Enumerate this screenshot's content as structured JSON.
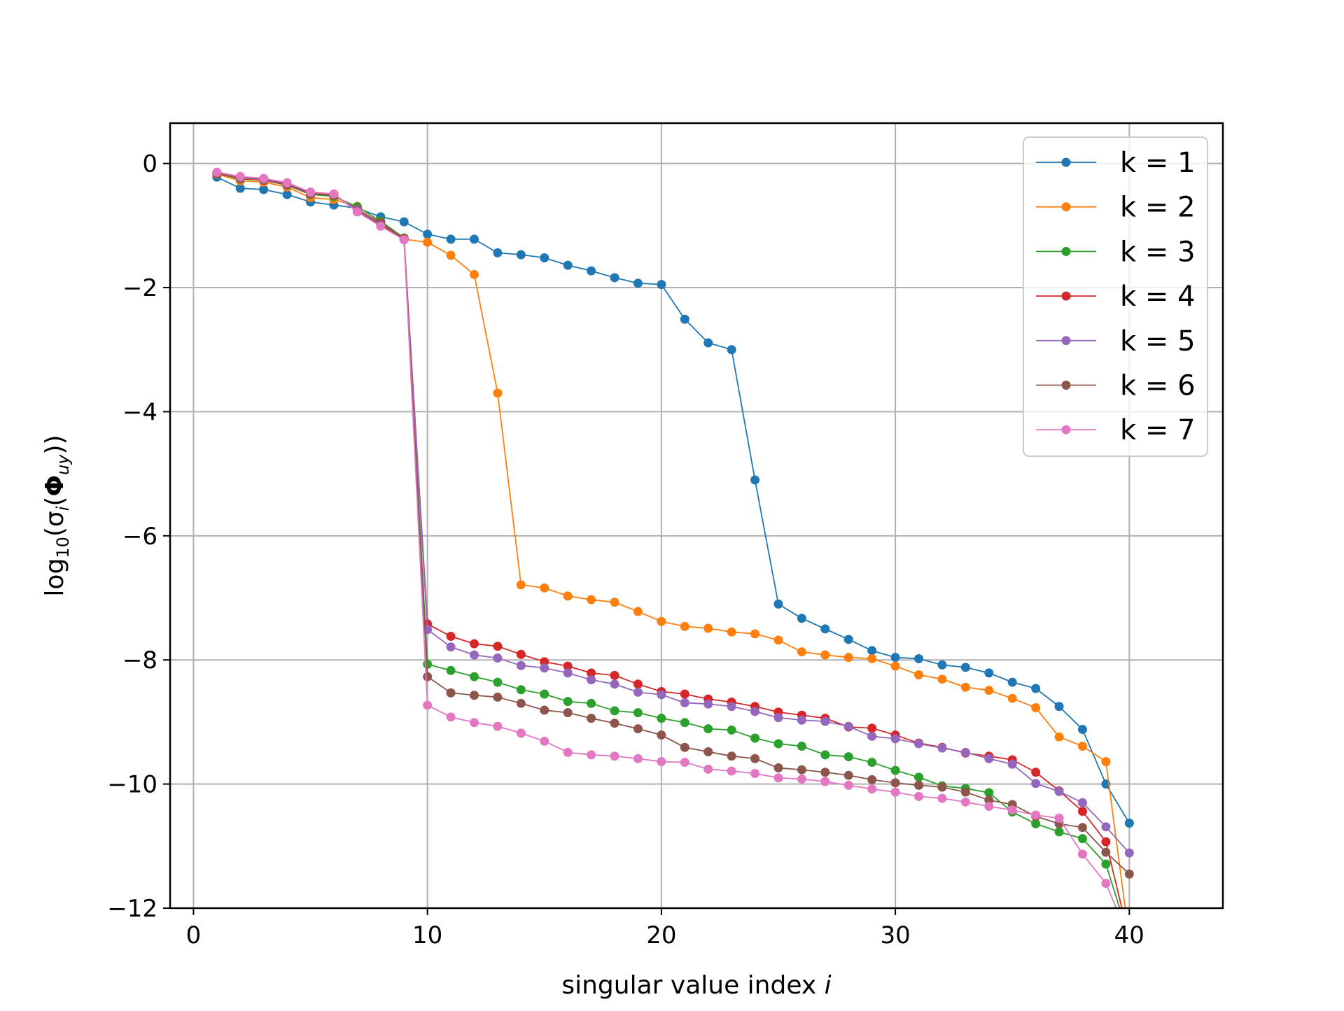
{
  "chart_data": {
    "type": "line",
    "xlabel": "singular value index i",
    "ylabel": "log10(σi(Φuy))",
    "xlim": [
      -1,
      44
    ],
    "ylim": [
      -12,
      0.65
    ],
    "xticks": [
      0,
      10,
      20,
      30,
      40
    ],
    "xtick_labels": [
      "0",
      "10",
      "20",
      "30",
      "40"
    ],
    "yticks": [
      0,
      -2,
      -4,
      -6,
      -8,
      -10,
      -12
    ],
    "ytick_labels": [
      "0",
      "−2",
      "−4",
      "−6",
      "−8",
      "−10",
      "−12"
    ],
    "grid": true,
    "legend_position": "top-right",
    "x": [
      1,
      2,
      3,
      4,
      5,
      6,
      7,
      8,
      9,
      10,
      11,
      12,
      13,
      14,
      15,
      16,
      17,
      18,
      19,
      20,
      21,
      22,
      23,
      24,
      25,
      26,
      27,
      28,
      29,
      30,
      31,
      32,
      33,
      34,
      35,
      36,
      37,
      38,
      39,
      40
    ],
    "series": [
      {
        "name": "k = 1",
        "color": "#1f77b4",
        "values": [
          -0.22,
          -0.4,
          -0.42,
          -0.5,
          -0.62,
          -0.67,
          -0.72,
          -0.86,
          -0.94,
          -1.14,
          -1.22,
          -1.22,
          -1.44,
          -1.47,
          -1.52,
          -1.64,
          -1.73,
          -1.84,
          -1.93,
          -1.95,
          -2.51,
          -2.89,
          -3.0,
          -5.1,
          -7.1,
          -7.33,
          -7.5,
          -7.67,
          -7.85,
          -7.96,
          -7.98,
          -8.08,
          -8.12,
          -8.21,
          -8.36,
          -8.46,
          -8.75,
          -9.12,
          -10.0,
          -10.63
        ]
      },
      {
        "name": "k = 2",
        "color": "#ff7f0e",
        "values": [
          -0.17,
          -0.28,
          -0.3,
          -0.38,
          -0.55,
          -0.58,
          -0.69,
          -0.94,
          -1.22,
          -1.27,
          -1.48,
          -1.79,
          -3.7,
          -6.79,
          -6.84,
          -6.97,
          -7.03,
          -7.07,
          -7.22,
          -7.38,
          -7.46,
          -7.49,
          -7.55,
          -7.58,
          -7.68,
          -7.87,
          -7.92,
          -7.96,
          -7.98,
          -8.1,
          -8.24,
          -8.31,
          -8.44,
          -8.49,
          -8.62,
          -8.77,
          -9.24,
          -9.39,
          -9.64,
          -12.5
        ]
      },
      {
        "name": "k = 3",
        "color": "#2ca02c",
        "values": [
          -0.16,
          -0.25,
          -0.27,
          -0.35,
          -0.5,
          -0.53,
          -0.7,
          -0.93,
          -1.2,
          -8.07,
          -8.17,
          -8.27,
          -8.36,
          -8.48,
          -8.55,
          -8.67,
          -8.7,
          -8.82,
          -8.85,
          -8.94,
          -9.01,
          -9.11,
          -9.13,
          -9.26,
          -9.35,
          -9.39,
          -9.53,
          -9.56,
          -9.65,
          -9.78,
          -9.89,
          -10.03,
          -10.07,
          -10.14,
          -10.45,
          -10.64,
          -10.77,
          -10.88,
          -11.29,
          -12.5
        ]
      },
      {
        "name": "k = 4",
        "color": "#d62728",
        "values": [
          -0.16,
          -0.24,
          -0.27,
          -0.34,
          -0.49,
          -0.51,
          -0.74,
          -0.96,
          -1.21,
          -7.42,
          -7.62,
          -7.74,
          -7.78,
          -7.91,
          -8.03,
          -8.1,
          -8.21,
          -8.25,
          -8.39,
          -8.51,
          -8.55,
          -8.63,
          -8.68,
          -8.75,
          -8.84,
          -8.89,
          -8.94,
          -9.08,
          -9.1,
          -9.21,
          -9.34,
          -9.41,
          -9.5,
          -9.55,
          -9.61,
          -9.81,
          -10.11,
          -10.44,
          -10.93,
          -12.5
        ]
      },
      {
        "name": "k = 5",
        "color": "#9467bd",
        "values": [
          -0.15,
          -0.23,
          -0.26,
          -0.33,
          -0.48,
          -0.5,
          -0.75,
          -0.98,
          -1.22,
          -7.51,
          -7.79,
          -7.92,
          -7.97,
          -8.09,
          -8.13,
          -8.21,
          -8.32,
          -8.39,
          -8.52,
          -8.56,
          -8.69,
          -8.71,
          -8.75,
          -8.83,
          -8.93,
          -8.97,
          -8.99,
          -9.07,
          -9.23,
          -9.27,
          -9.35,
          -9.42,
          -9.49,
          -9.59,
          -9.68,
          -9.99,
          -10.12,
          -10.3,
          -10.69,
          -11.11
        ]
      },
      {
        "name": "k = 6",
        "color": "#8c564b",
        "values": [
          -0.15,
          -0.22,
          -0.25,
          -0.32,
          -0.47,
          -0.5,
          -0.77,
          -0.99,
          -1.22,
          -8.27,
          -8.53,
          -8.57,
          -8.6,
          -8.7,
          -8.81,
          -8.85,
          -8.94,
          -9.02,
          -9.11,
          -9.21,
          -9.41,
          -9.48,
          -9.55,
          -9.59,
          -9.74,
          -9.77,
          -9.81,
          -9.86,
          -9.93,
          -9.98,
          -10.02,
          -10.05,
          -10.13,
          -10.26,
          -10.33,
          -10.52,
          -10.64,
          -10.7,
          -11.1,
          -11.45
        ]
      },
      {
        "name": "k = 7",
        "color": "#e377c2",
        "values": [
          -0.14,
          -0.21,
          -0.24,
          -0.31,
          -0.46,
          -0.49,
          -0.78,
          -1.01,
          -1.23,
          -8.73,
          -8.92,
          -9.01,
          -9.07,
          -9.18,
          -9.31,
          -9.49,
          -9.53,
          -9.55,
          -9.59,
          -9.64,
          -9.65,
          -9.76,
          -9.79,
          -9.83,
          -9.9,
          -9.92,
          -9.96,
          -10.02,
          -10.08,
          -10.13,
          -10.2,
          -10.23,
          -10.29,
          -10.36,
          -10.42,
          -10.5,
          -10.55,
          -11.13,
          -11.6,
          -12.5
        ]
      }
    ]
  }
}
